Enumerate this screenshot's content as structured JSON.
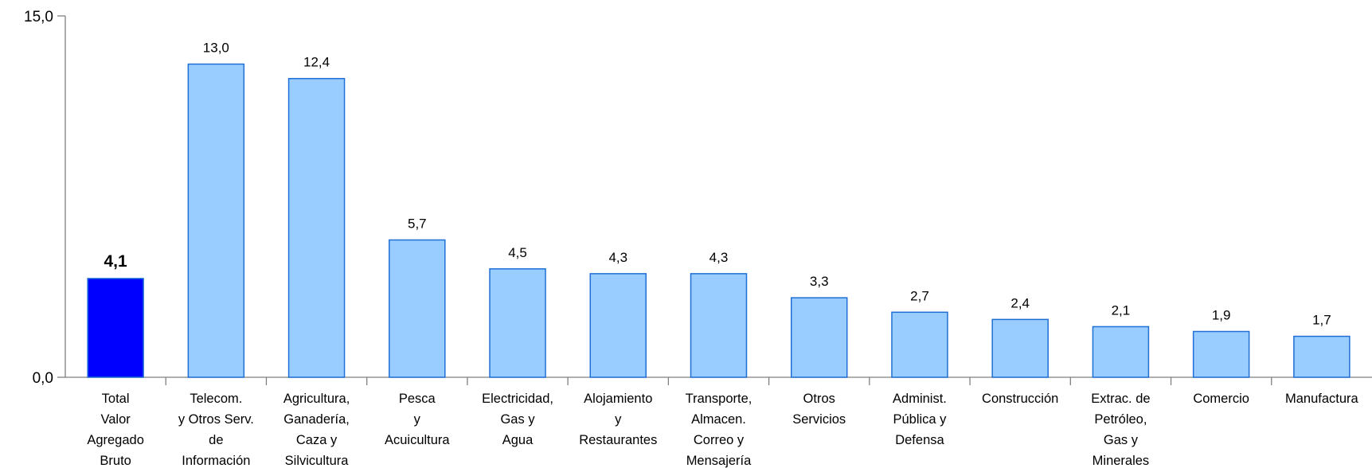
{
  "chart_data": {
    "type": "bar",
    "title": "",
    "xlabel": "",
    "ylabel": "",
    "ylim": [
      0,
      15
    ],
    "y_ticks": [
      "0,0",
      "15,0"
    ],
    "grid": false,
    "categories": [
      [
        "Total",
        "Valor",
        "Agregado",
        "Bruto"
      ],
      [
        "Telecom.",
        "y Otros Serv.",
        "de",
        "Información"
      ],
      [
        "Agricultura,",
        "Ganadería,",
        "Caza y",
        "Silvicultura"
      ],
      [
        "Pesca",
        "y",
        "Acuicultura"
      ],
      [
        "Electricidad,",
        "Gas y",
        "Agua"
      ],
      [
        "Alojamiento",
        "y",
        "Restaurantes"
      ],
      [
        "Transporte,",
        "Almacen.",
        "Correo y",
        "Mensajería"
      ],
      [
        "Otros",
        "Servicios"
      ],
      [
        "Administ.",
        "Pública y",
        "Defensa"
      ],
      [
        "Construcción"
      ],
      [
        "Extrac. de",
        "Petróleo,",
        "Gas y",
        "Minerales"
      ],
      [
        "Comercio"
      ],
      [
        "Manufactura"
      ]
    ],
    "values": [
      4.1,
      13.0,
      12.4,
      5.7,
      4.5,
      4.3,
      4.3,
      3.3,
      2.7,
      2.4,
      2.1,
      1.9,
      1.7
    ],
    "data_labels": [
      "4,1",
      "13,0",
      "12,4",
      "5,7",
      "4,5",
      "4,3",
      "4,3",
      "3,3",
      "2,7",
      "2,4",
      "2,1",
      "1,9",
      "1,7"
    ],
    "bar_colors": [
      "#0000ff",
      "#99ccff",
      "#99ccff",
      "#99ccff",
      "#99ccff",
      "#99ccff",
      "#99ccff",
      "#99ccff",
      "#99ccff",
      "#99ccff",
      "#99ccff",
      "#99ccff",
      "#99ccff"
    ],
    "bar_stroke": "#1f6fd6",
    "highlight_label_color": "#0000ff",
    "axis_color": "#808080"
  }
}
